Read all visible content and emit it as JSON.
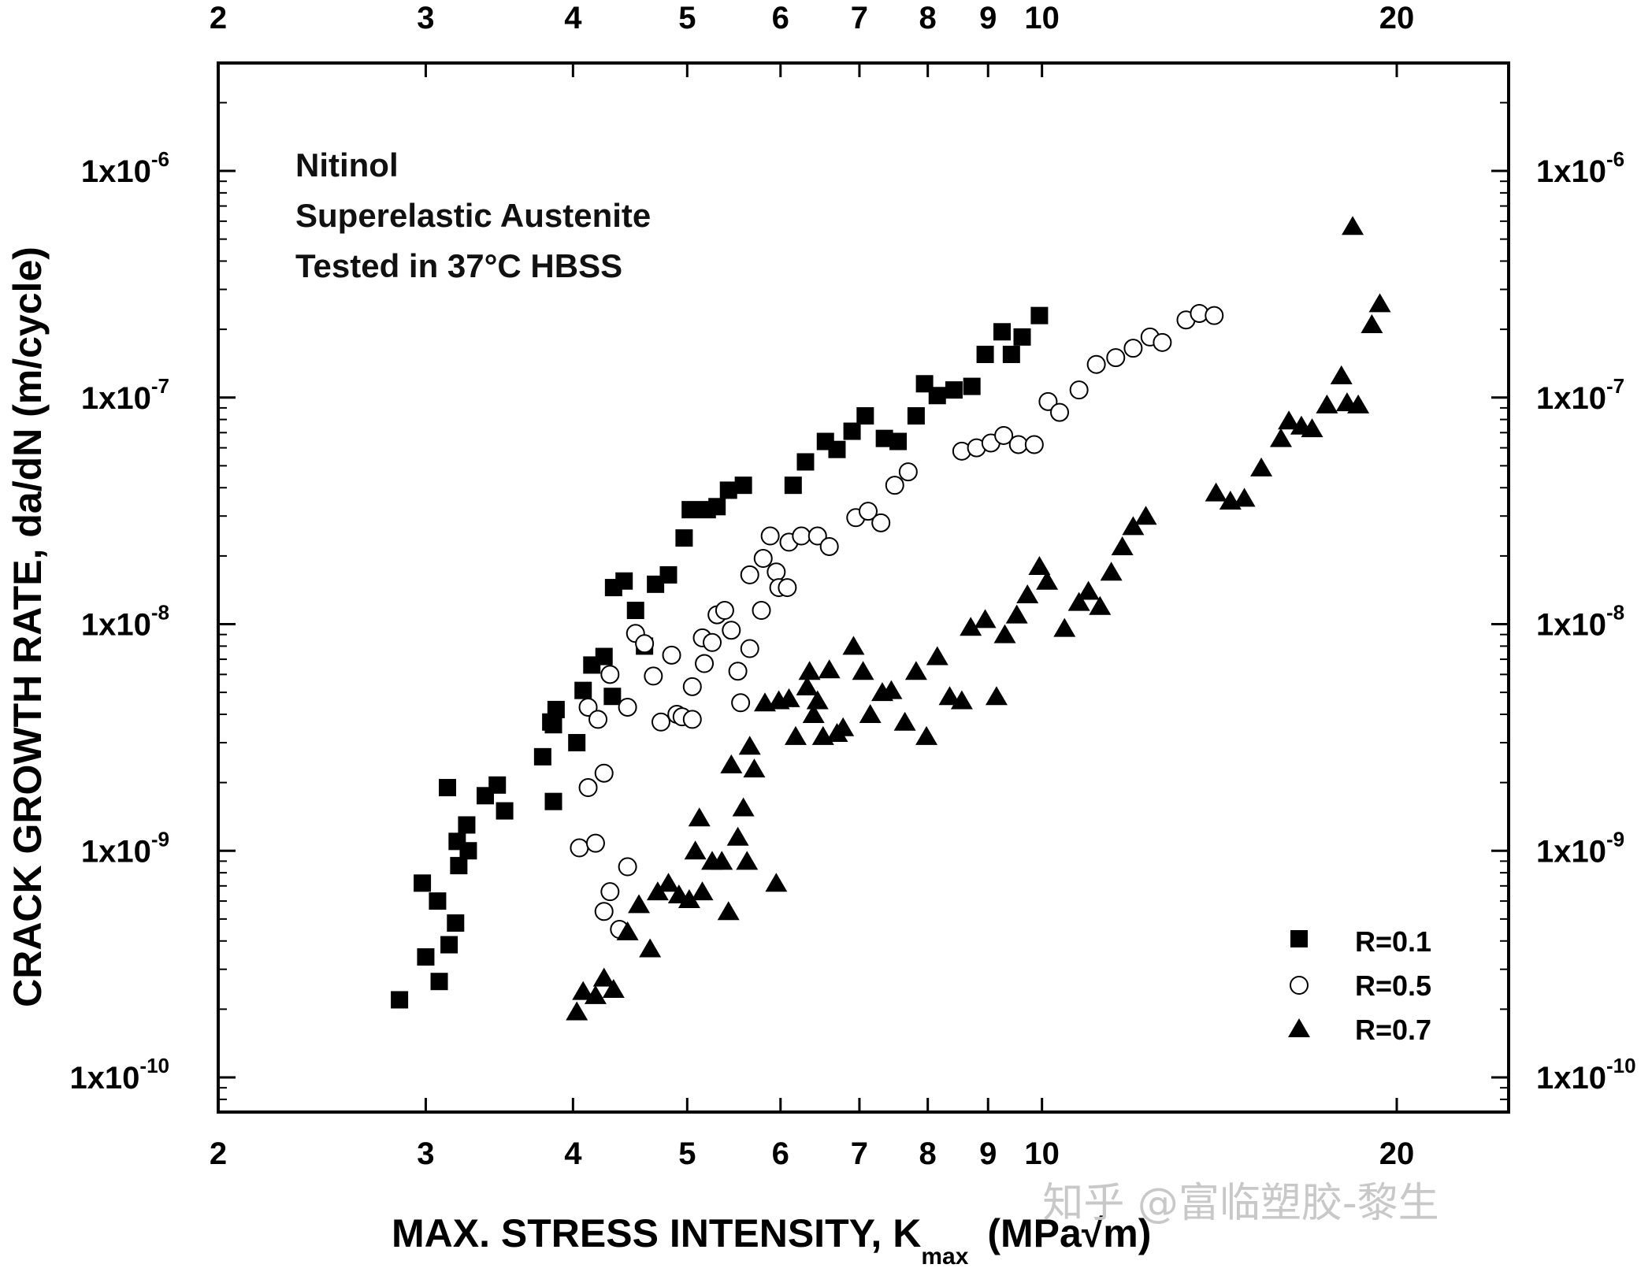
{
  "chart_data": {
    "type": "scatter",
    "x_scale": "log",
    "y_scale": "log",
    "xlim": [
      2,
      25
    ],
    "ylim": [
      7.5e-11,
      2.8e-06
    ],
    "x_ticks": [
      2,
      3,
      4,
      5,
      6,
      7,
      8,
      9,
      10,
      20
    ],
    "x_tick_labels": [
      "2",
      "3",
      "4",
      "5",
      "6",
      "7",
      "8",
      "9",
      "10",
      "20"
    ],
    "y_ticks": [
      1e-10,
      1e-09,
      1e-08,
      1e-07,
      1e-06
    ],
    "y_tick_labels": [
      {
        "base": "1x10",
        "exp": "-10"
      },
      {
        "base": "1x10",
        "exp": "-9"
      },
      {
        "base": "1x10",
        "exp": "-8"
      },
      {
        "base": "1x10",
        "exp": "-7"
      },
      {
        "base": "1x10",
        "exp": "-6"
      }
    ],
    "xlabel": {
      "main": "MAX. STRESS INTENSITY, K",
      "sub": "max",
      "unit": "(MPa√m)"
    },
    "ylabel": "CRACK GROWTH RATE, da/dN (m/cycle)",
    "annotations": [
      "Nitinol",
      "Superelastic Austenite",
      "Tested in 37°C HBSS"
    ],
    "legend_position": "bottom-right",
    "series": [
      {
        "name": "R=0.1",
        "marker": "square-filled",
        "points": [
          [
            2.85,
            2.2e-10
          ],
          [
            2.98,
            7.2e-10
          ],
          [
            3.0,
            3.4e-10
          ],
          [
            3.07,
            6e-10
          ],
          [
            3.08,
            2.65e-10
          ],
          [
            3.13,
            1.9e-09
          ],
          [
            3.14,
            3.85e-10
          ],
          [
            3.18,
            4.8e-10
          ],
          [
            3.19,
            1.1e-09
          ],
          [
            3.2,
            8.6e-10
          ],
          [
            3.25,
            1.3e-09
          ],
          [
            3.26,
            1e-09
          ],
          [
            3.37,
            1.75e-09
          ],
          [
            3.45,
            1.95e-09
          ],
          [
            3.5,
            1.5e-09
          ],
          [
            3.77,
            2.6e-09
          ],
          [
            3.83,
            3.7e-09
          ],
          [
            3.85,
            1.65e-09
          ],
          [
            3.85,
            3.6e-09
          ],
          [
            3.87,
            4.2e-09
          ],
          [
            4.03,
            3e-09
          ],
          [
            4.08,
            5.1e-09
          ],
          [
            4.15,
            6.6e-09
          ],
          [
            4.25,
            7.2e-09
          ],
          [
            4.32,
            4.8e-09
          ],
          [
            4.33,
            1.45e-08
          ],
          [
            4.42,
            1.55e-08
          ],
          [
            4.52,
            1.15e-08
          ],
          [
            4.6,
            8e-09
          ],
          [
            4.7,
            1.5e-08
          ],
          [
            4.82,
            1.65e-08
          ],
          [
            4.97,
            2.4e-08
          ],
          [
            5.03,
            3.2e-08
          ],
          [
            5.2,
            3.2e-08
          ],
          [
            5.3,
            3.3e-08
          ],
          [
            5.42,
            3.9e-08
          ],
          [
            5.58,
            4.1e-08
          ],
          [
            6.15,
            4.1e-08
          ],
          [
            6.3,
            5.2e-08
          ],
          [
            6.55,
            6.4e-08
          ],
          [
            6.7,
            5.9e-08
          ],
          [
            6.9,
            7.1e-08
          ],
          [
            7.08,
            8.3e-08
          ],
          [
            7.35,
            6.6e-08
          ],
          [
            7.55,
            6.4e-08
          ],
          [
            7.82,
            8.3e-08
          ],
          [
            7.95,
            1.15e-07
          ],
          [
            8.15,
            1.02e-07
          ],
          [
            8.42,
            1.08e-07
          ],
          [
            8.72,
            1.12e-07
          ],
          [
            8.95,
            1.55e-07
          ],
          [
            9.25,
            1.95e-07
          ],
          [
            9.42,
            1.55e-07
          ],
          [
            9.62,
            1.85e-07
          ],
          [
            9.95,
            2.3e-07
          ]
        ]
      },
      {
        "name": "R=0.5",
        "marker": "circle-open",
        "points": [
          [
            4.05,
            1.03e-09
          ],
          [
            4.12,
            1.9e-09
          ],
          [
            4.12,
            4.3e-09
          ],
          [
            4.18,
            1.08e-09
          ],
          [
            4.2,
            3.8e-09
          ],
          [
            4.25,
            5.4e-10
          ],
          [
            4.25,
            2.2e-09
          ],
          [
            4.3,
            6.6e-10
          ],
          [
            4.3,
            6e-09
          ],
          [
            4.38,
            4.5e-10
          ],
          [
            4.45,
            8.5e-10
          ],
          [
            4.45,
            4.3e-09
          ],
          [
            4.52,
            9.1e-09
          ],
          [
            4.6,
            8.2e-09
          ],
          [
            4.68,
            5.9e-09
          ],
          [
            4.75,
            3.7e-09
          ],
          [
            4.85,
            7.3e-09
          ],
          [
            4.9,
            4e-09
          ],
          [
            4.95,
            3.9e-09
          ],
          [
            5.05,
            5.3e-09
          ],
          [
            5.05,
            3.8e-09
          ],
          [
            5.15,
            8.7e-09
          ],
          [
            5.17,
            6.7e-09
          ],
          [
            5.25,
            8.3e-09
          ],
          [
            5.3,
            1.1e-08
          ],
          [
            5.38,
            1.15e-08
          ],
          [
            5.45,
            9.4e-09
          ],
          [
            5.52,
            6.2e-09
          ],
          [
            5.55,
            4.5e-09
          ],
          [
            5.65,
            7.8e-09
          ],
          [
            5.65,
            1.65e-08
          ],
          [
            5.78,
            1.15e-08
          ],
          [
            5.8,
            1.95e-08
          ],
          [
            5.88,
            2.45e-08
          ],
          [
            5.95,
            1.7e-08
          ],
          [
            5.98,
            1.45e-08
          ],
          [
            6.08,
            1.45e-08
          ],
          [
            6.1,
            2.3e-08
          ],
          [
            6.25,
            2.45e-08
          ],
          [
            6.45,
            2.45e-08
          ],
          [
            6.6,
            2.2e-08
          ],
          [
            6.95,
            2.95e-08
          ],
          [
            7.12,
            3.15e-08
          ],
          [
            7.3,
            2.8e-08
          ],
          [
            7.5,
            4.1e-08
          ],
          [
            7.7,
            4.7e-08
          ],
          [
            8.55,
            5.8e-08
          ],
          [
            8.8,
            6e-08
          ],
          [
            9.05,
            6.3e-08
          ],
          [
            9.28,
            6.8e-08
          ],
          [
            9.55,
            6.2e-08
          ],
          [
            9.85,
            6.2e-08
          ],
          [
            10.12,
            9.6e-08
          ],
          [
            10.35,
            8.6e-08
          ],
          [
            10.75,
            1.08e-07
          ],
          [
            11.12,
            1.4e-07
          ],
          [
            11.55,
            1.5e-07
          ],
          [
            11.95,
            1.65e-07
          ],
          [
            12.35,
            1.85e-07
          ],
          [
            12.65,
            1.75e-07
          ],
          [
            13.25,
            2.2e-07
          ],
          [
            13.6,
            2.35e-07
          ],
          [
            14.0,
            2.3e-07
          ]
        ]
      },
      {
        "name": "R=0.7",
        "marker": "triangle-filled",
        "points": [
          [
            4.03,
            1.95e-10
          ],
          [
            4.08,
            2.4e-10
          ],
          [
            4.18,
            2.3e-10
          ],
          [
            4.25,
            2.75e-10
          ],
          [
            4.33,
            2.45e-10
          ],
          [
            4.45,
            4.4e-10
          ],
          [
            4.55,
            5.8e-10
          ],
          [
            4.65,
            3.7e-10
          ],
          [
            4.72,
            6.6e-10
          ],
          [
            4.82,
            7.2e-10
          ],
          [
            4.92,
            6.4e-10
          ],
          [
            5.02,
            6.1e-10
          ],
          [
            5.08,
            1e-09
          ],
          [
            5.12,
            1.4e-09
          ],
          [
            5.15,
            6.6e-10
          ],
          [
            5.25,
            9e-10
          ],
          [
            5.35,
            9e-10
          ],
          [
            5.42,
            5.4e-10
          ],
          [
            5.45,
            2.4e-09
          ],
          [
            5.52,
            1.15e-09
          ],
          [
            5.58,
            1.55e-09
          ],
          [
            5.62,
            9e-10
          ],
          [
            5.65,
            2.9e-09
          ],
          [
            5.7,
            2.3e-09
          ],
          [
            5.82,
            4.5e-09
          ],
          [
            5.95,
            7.2e-10
          ],
          [
            5.98,
            4.6e-09
          ],
          [
            6.1,
            4.7e-09
          ],
          [
            6.18,
            3.2e-09
          ],
          [
            6.32,
            5.3e-09
          ],
          [
            6.35,
            6.2e-09
          ],
          [
            6.4,
            4e-09
          ],
          [
            6.45,
            4.6e-09
          ],
          [
            6.52,
            3.2e-09
          ],
          [
            6.6,
            6.3e-09
          ],
          [
            6.7,
            3.3e-09
          ],
          [
            6.78,
            3.5e-09
          ],
          [
            6.92,
            8e-09
          ],
          [
            7.05,
            6.2e-09
          ],
          [
            7.15,
            4e-09
          ],
          [
            7.32,
            5e-09
          ],
          [
            7.45,
            5.1e-09
          ],
          [
            7.65,
            3.7e-09
          ],
          [
            7.82,
            6.2e-09
          ],
          [
            7.98,
            3.2e-09
          ],
          [
            8.15,
            7.2e-09
          ],
          [
            8.35,
            4.8e-09
          ],
          [
            8.55,
            4.6e-09
          ],
          [
            8.7,
            9.7e-09
          ],
          [
            8.95,
            1.05e-08
          ],
          [
            9.15,
            4.8e-09
          ],
          [
            9.3,
            9e-09
          ],
          [
            9.52,
            1.1e-08
          ],
          [
            9.72,
            1.35e-08
          ],
          [
            9.95,
            1.8e-08
          ],
          [
            10.1,
            1.55e-08
          ],
          [
            10.45,
            9.6e-09
          ],
          [
            10.75,
            1.25e-08
          ],
          [
            10.95,
            1.4e-08
          ],
          [
            11.2,
            1.2e-08
          ],
          [
            11.45,
            1.7e-08
          ],
          [
            11.7,
            2.2e-08
          ],
          [
            11.95,
            2.7e-08
          ],
          [
            12.25,
            3e-08
          ],
          [
            14.05,
            3.8e-08
          ],
          [
            14.45,
            3.5e-08
          ],
          [
            14.85,
            3.6e-08
          ],
          [
            15.35,
            4.9e-08
          ],
          [
            15.95,
            6.6e-08
          ],
          [
            16.2,
            7.9e-08
          ],
          [
            16.6,
            7.5e-08
          ],
          [
            16.95,
            7.3e-08
          ],
          [
            17.45,
            9.3e-08
          ],
          [
            17.95,
            1.25e-07
          ],
          [
            18.15,
            9.5e-08
          ],
          [
            18.55,
            9.3e-08
          ],
          [
            18.35,
            5.7e-07
          ],
          [
            19.05,
            2.1e-07
          ],
          [
            19.35,
            2.6e-07
          ]
        ]
      }
    ]
  },
  "watermark": "知乎 @富临塑胶-黎生"
}
